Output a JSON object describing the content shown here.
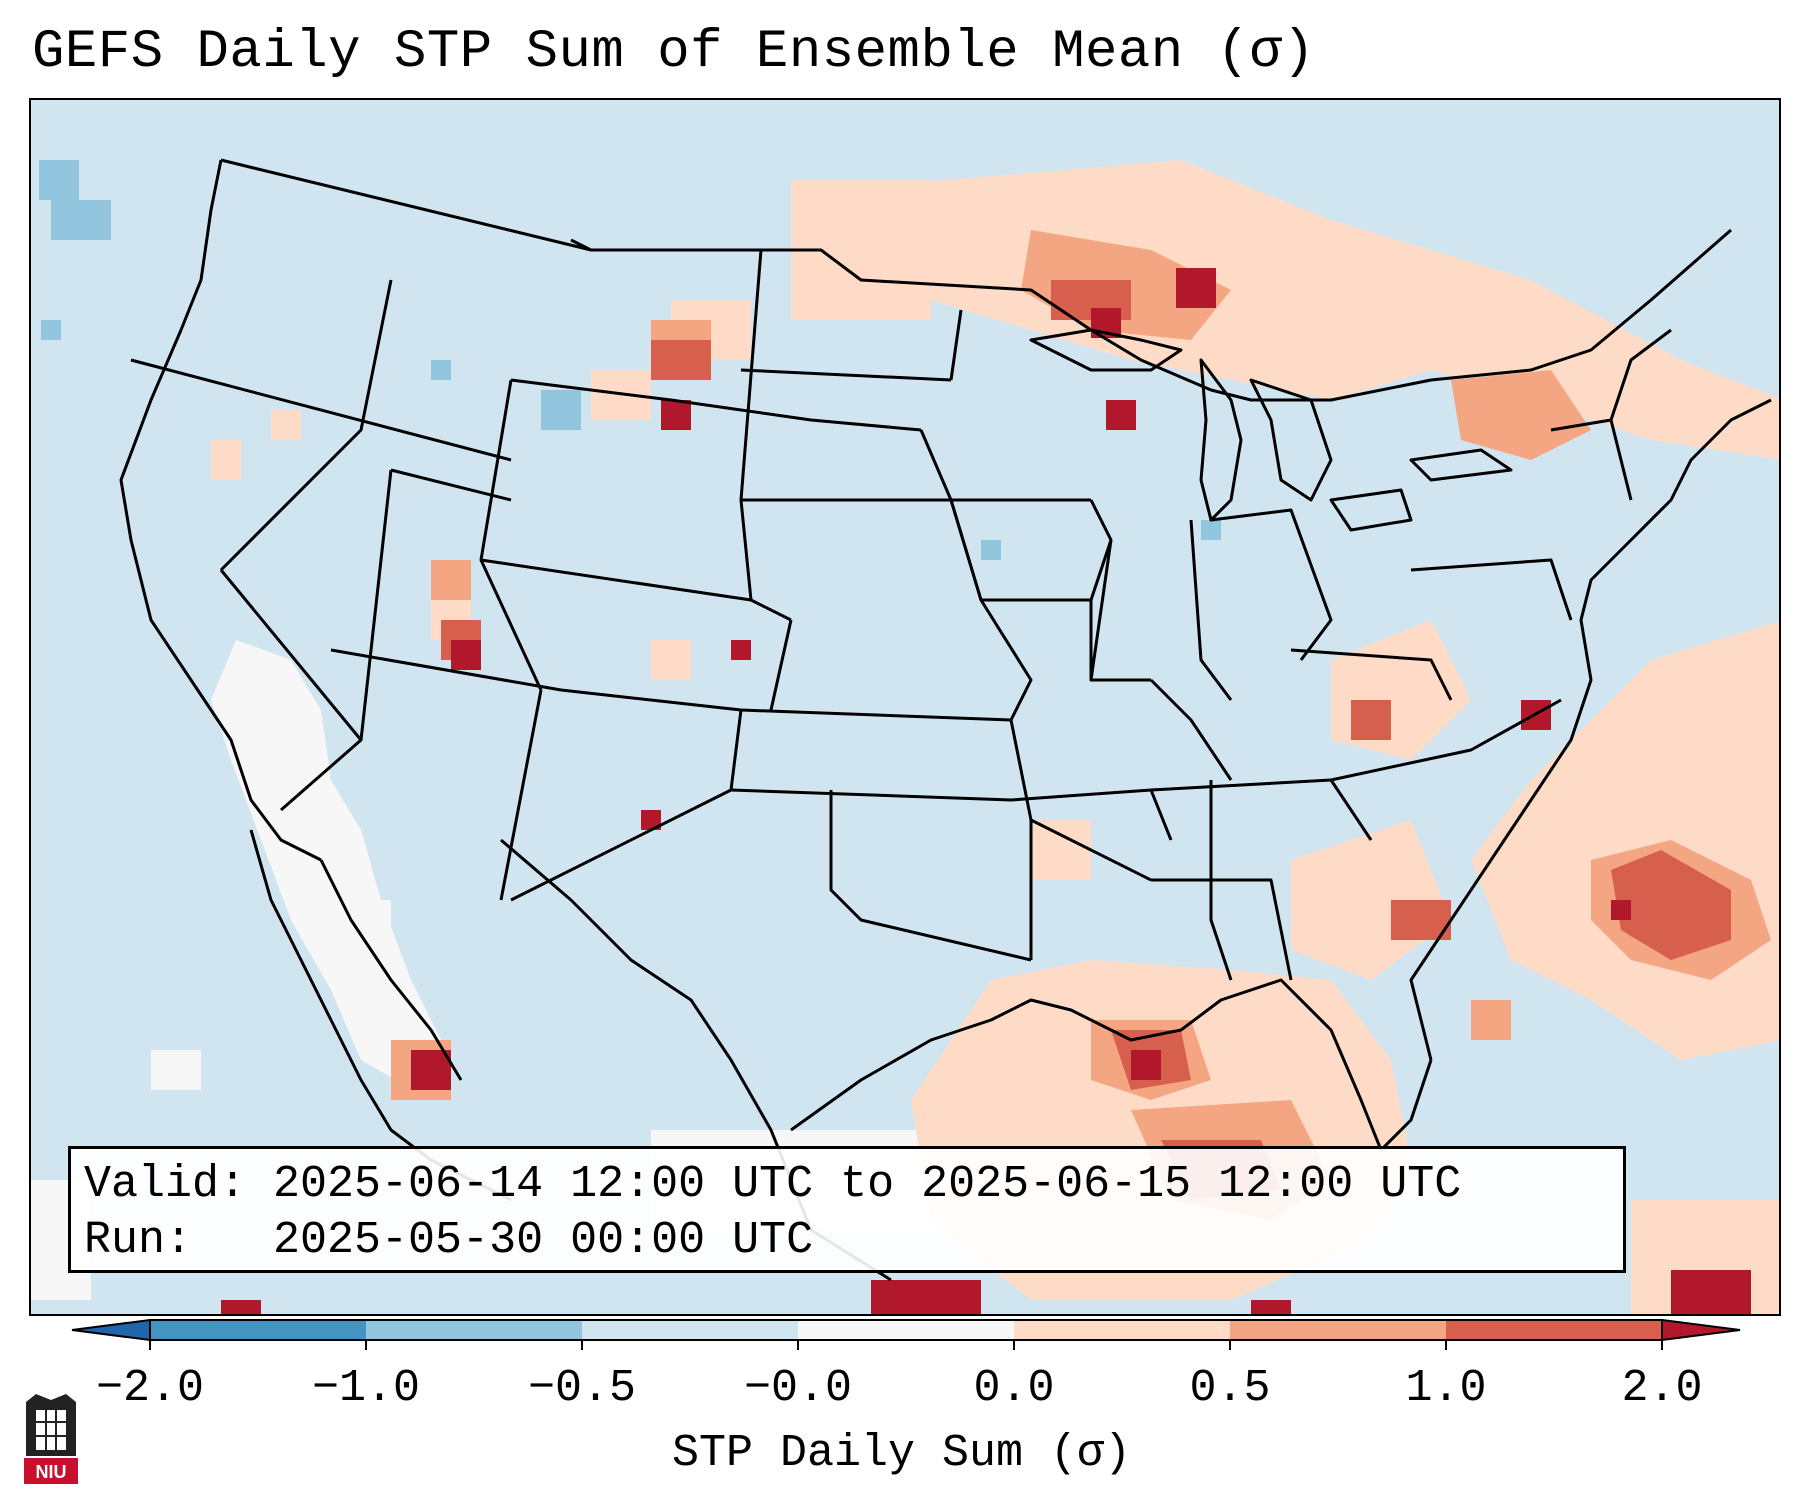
{
  "title": "GEFS Daily STP Sum of Ensemble Mean (σ)",
  "info": {
    "valid_line": "Valid: 2025-06-14 12:00 UTC to 2025-06-15 12:00 UTC",
    "run_line": "Run:   2025-05-30 00:00 UTC"
  },
  "colorbar": {
    "label": "STP Daily Sum (σ)",
    "ticks": [
      "−2.0",
      "−1.0",
      "−0.5",
      "−0.0",
      "0.0",
      "0.5",
      "1.0",
      "2.0"
    ],
    "colors": [
      "#2166ac",
      "#4393c3",
      "#92c5de",
      "#d1e5f0",
      "#f7f7f7",
      "#fddbc7",
      "#f4a582",
      "#d6604d",
      "#b2182b"
    ]
  },
  "logo": {
    "text": "NIU",
    "color": "#c8102e"
  }
}
